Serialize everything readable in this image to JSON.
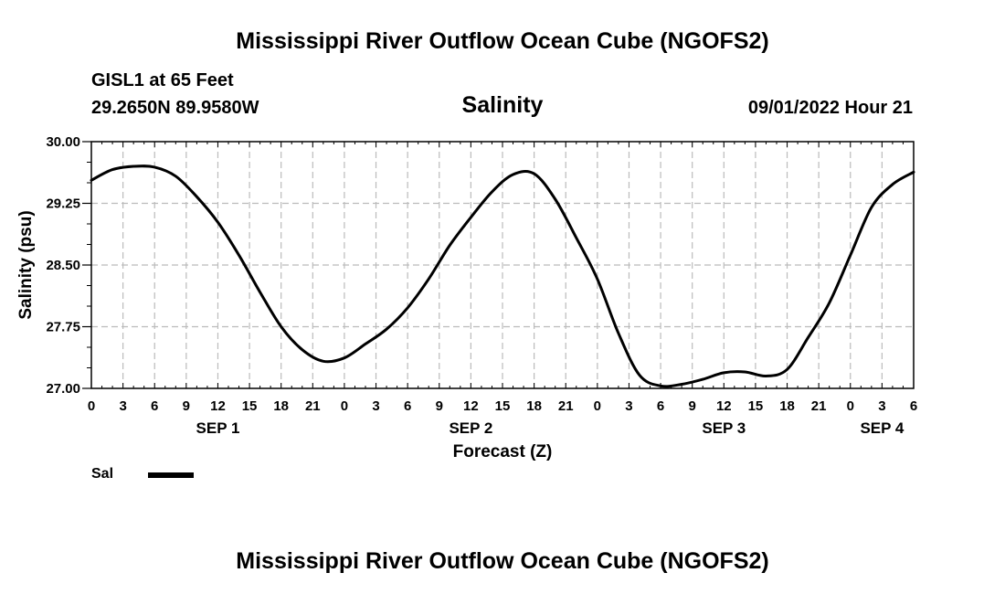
{
  "header": {
    "title": "Mississippi River Outflow Ocean Cube (NGOFS2)",
    "station": "GISL1 at 65 Feet",
    "coords": "29.2650N  89.9580W",
    "forecast_time": "09/01/2022 Hour 21"
  },
  "footer": {
    "title": "Mississippi River Outflow Ocean Cube (NGOFS2)"
  },
  "legend": {
    "label": "Sal"
  },
  "chart_data": {
    "type": "line",
    "title": "Salinity",
    "xlabel": "Forecast (Z)",
    "ylabel": "Salinity (psu)",
    "ylim": [
      27.0,
      30.0
    ],
    "yticks": [
      "27.00",
      "27.75",
      "28.50",
      "29.25",
      "30.00"
    ],
    "xlim": [
      0,
      78
    ],
    "xtick_step_hours": 3,
    "xtick_labels": [
      "0",
      "3",
      "6",
      "9",
      "12",
      "15",
      "18",
      "21",
      "0",
      "3",
      "6",
      "9",
      "12",
      "15",
      "18",
      "21",
      "0",
      "3",
      "6",
      "9",
      "12",
      "15",
      "18",
      "21",
      "0",
      "3",
      "6"
    ],
    "day_labels": [
      {
        "label": "SEP 1",
        "hour": 12
      },
      {
        "label": "SEP 2",
        "hour": 36
      },
      {
        "label": "SEP 3",
        "hour": 60
      },
      {
        "label": "SEP 4",
        "hour": 75
      }
    ],
    "grid": true,
    "series": [
      {
        "name": "Sal",
        "color": "#000000",
        "x": [
          0,
          2,
          4,
          6,
          8,
          10,
          12,
          14,
          16,
          18,
          20,
          22,
          24,
          26,
          28,
          30,
          32,
          34,
          36,
          38,
          40,
          42,
          44,
          46,
          48,
          50,
          52,
          54,
          56,
          58,
          60,
          62,
          64,
          66,
          68,
          70,
          72,
          74,
          76,
          78
        ],
        "y": [
          29.53,
          29.66,
          29.7,
          29.69,
          29.58,
          29.33,
          29.02,
          28.62,
          28.17,
          27.75,
          27.47,
          27.33,
          27.37,
          27.54,
          27.72,
          27.98,
          28.33,
          28.74,
          29.08,
          29.39,
          29.6,
          29.61,
          29.3,
          28.83,
          28.33,
          27.67,
          27.16,
          27.03,
          27.05,
          27.11,
          27.19,
          27.2,
          27.15,
          27.23,
          27.62,
          28.04,
          28.62,
          29.2,
          29.48,
          29.63
        ]
      }
    ]
  }
}
